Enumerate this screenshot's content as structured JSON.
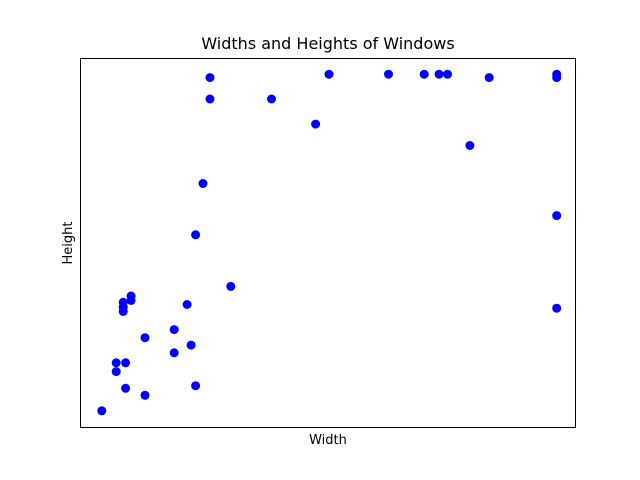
{
  "chart_data": {
    "type": "scatter",
    "title": "Widths and Heights of Windows",
    "xlabel": "Width",
    "ylabel": "Height",
    "xlim": [
      0,
      100
    ],
    "ylim": [
      0,
      100
    ],
    "x_ticks": [],
    "y_ticks": [],
    "grid": false,
    "legend": "none",
    "marker_color": "#0000ff",
    "points": [
      {
        "x": 4.4,
        "y": 4.4
      },
      {
        "x": 7.3,
        "y": 15.0
      },
      {
        "x": 7.3,
        "y": 17.4
      },
      {
        "x": 9.2,
        "y": 10.5
      },
      {
        "x": 9.2,
        "y": 17.4
      },
      {
        "x": 8.7,
        "y": 31.3
      },
      {
        "x": 8.7,
        "y": 32.5
      },
      {
        "x": 8.7,
        "y": 33.8
      },
      {
        "x": 10.3,
        "y": 34.3
      },
      {
        "x": 10.3,
        "y": 35.5
      },
      {
        "x": 13.1,
        "y": 8.6
      },
      {
        "x": 13.1,
        "y": 24.2
      },
      {
        "x": 19.0,
        "y": 20.1
      },
      {
        "x": 19.0,
        "y": 26.4
      },
      {
        "x": 21.6,
        "y": 33.2
      },
      {
        "x": 22.4,
        "y": 22.2
      },
      {
        "x": 23.3,
        "y": 11.2
      },
      {
        "x": 23.3,
        "y": 52.1
      },
      {
        "x": 24.8,
        "y": 66.0
      },
      {
        "x": 26.2,
        "y": 88.9
      },
      {
        "x": 26.2,
        "y": 94.7
      },
      {
        "x": 30.4,
        "y": 38.1
      },
      {
        "x": 38.6,
        "y": 88.9
      },
      {
        "x": 47.5,
        "y": 82.1
      },
      {
        "x": 50.2,
        "y": 95.6
      },
      {
        "x": 62.2,
        "y": 95.6
      },
      {
        "x": 69.4,
        "y": 95.6
      },
      {
        "x": 72.4,
        "y": 95.6
      },
      {
        "x": 74.1,
        "y": 95.6
      },
      {
        "x": 78.6,
        "y": 76.3
      },
      {
        "x": 82.5,
        "y": 94.7
      },
      {
        "x": 96.1,
        "y": 95.6
      },
      {
        "x": 96.1,
        "y": 94.7
      },
      {
        "x": 96.1,
        "y": 57.3
      },
      {
        "x": 96.1,
        "y": 32.2
      }
    ]
  }
}
